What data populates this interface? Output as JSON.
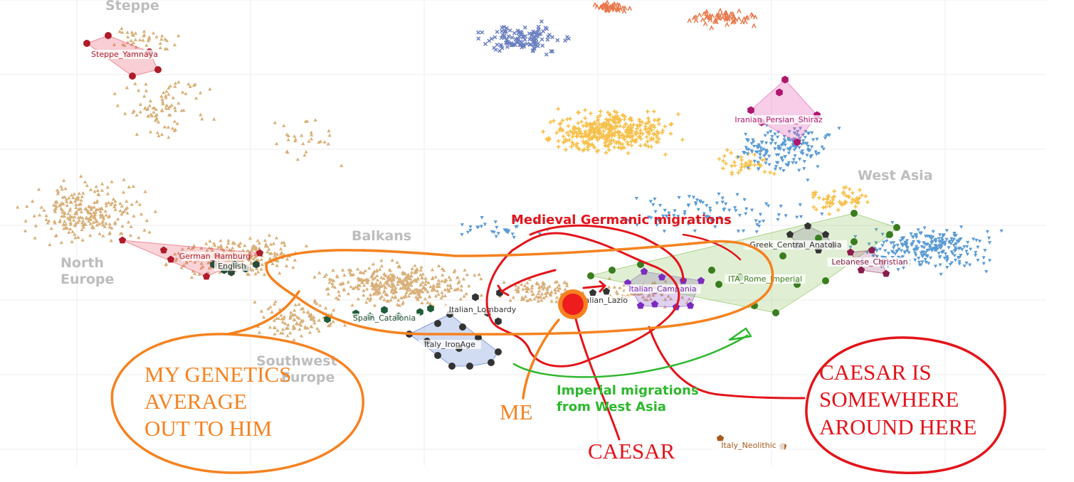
{
  "chart_data": {
    "type": "scatter",
    "title": "",
    "xlabel": "",
    "ylabel": "",
    "grid": true,
    "colors": {
      "europe": "#d9b07a",
      "westasia_a": "#f7c04a",
      "westasia_b": "#5b9bd5",
      "east_a": "#6a7fc1",
      "east_b": "#e8784a",
      "rome": "#7cb342",
      "campania": "#9c3fd6",
      "yamnaya": "#e0223a",
      "iran": "#d81b80",
      "neolithic": "#c0793a",
      "ironage": "#3f64b5",
      "catalonia": "#2e7d57",
      "annot_red": "#e3141b",
      "annot_orange": "#f58220",
      "annot_green": "#2eb82e"
    },
    "regions": [
      {
        "label": "Steppe"
      },
      {
        "label": "North"
      },
      {
        "label": "Europe"
      },
      {
        "label": "Balkans"
      },
      {
        "label": "Southwest"
      },
      {
        "label": "Europe"
      },
      {
        "label": "West Asia"
      }
    ],
    "groups": [
      {
        "label": "Steppe_Yamnaya",
        "color": "#b01a2a",
        "marker": "circle",
        "points": [
          [
            122,
            61
          ],
          [
            152,
            50
          ],
          [
            210,
            73
          ],
          [
            222,
            98
          ],
          [
            186,
            107
          ]
        ]
      },
      {
        "label": "German_Hamburg",
        "color": "#b01a2a",
        "marker": "pentagon",
        "points": [
          [
            172,
            338
          ],
          [
            230,
            352
          ],
          [
            290,
            389
          ],
          [
            365,
            356
          ],
          [
            240,
            365
          ],
          [
            305,
            360
          ]
        ]
      },
      {
        "label": "English",
        "color": "#2b4a3a",
        "marker": "hexagon",
        "points": [
          [
            300,
            372
          ],
          [
            315,
            380
          ],
          [
            330,
            372
          ],
          [
            345,
            378
          ],
          [
            360,
            372
          ],
          [
            325,
            383
          ]
        ]
      },
      {
        "label": "Spain_Catalonia",
        "color": "#1f5c3a",
        "marker": "hexagon",
        "points": [
          [
            460,
            449
          ],
          [
            500,
            441
          ],
          [
            540,
            436
          ],
          [
            560,
            445
          ],
          [
            590,
            439
          ],
          [
            605,
            434
          ],
          [
            520,
            445
          ]
        ]
      },
      {
        "label": "Italy_IronAge",
        "color": "#333333",
        "marker": "circle",
        "points": [
          [
            575,
            470
          ],
          [
            600,
            480
          ],
          [
            615,
            455
          ],
          [
            632,
            442
          ],
          [
            650,
            460
          ],
          [
            672,
            475
          ],
          [
            700,
            495
          ],
          [
            690,
            510
          ],
          [
            660,
            515
          ],
          [
            635,
            515
          ],
          [
            615,
            500
          ],
          [
            645,
            490
          ]
        ]
      },
      {
        "label": "Italian_Lombardy",
        "color": "#333333",
        "marker": "hexagon",
        "points": [
          [
            668,
            418
          ],
          [
            702,
            412
          ],
          [
            700,
            452
          ],
          [
            685,
            440
          ]
        ]
      },
      {
        "label": "Italian_Lazio",
        "color": "#333333",
        "marker": "pentagon",
        "points": [
          [
            833,
            412
          ],
          [
            852,
            410
          ],
          [
            815,
            430
          ]
        ]
      },
      {
        "label": "Italian_Campania",
        "color": "#7b2cbf",
        "marker": "pentagon",
        "points": [
          [
            882,
            398
          ],
          [
            905,
            382
          ],
          [
            930,
            390
          ],
          [
            960,
            395
          ],
          [
            985,
            395
          ],
          [
            970,
            430
          ],
          [
            950,
            432
          ],
          [
            920,
            428
          ],
          [
            900,
            430
          ]
        ]
      },
      {
        "label": "ITA_Rome_Imperial",
        "color": "#3a7d1f",
        "marker": "circle",
        "points": [
          [
            830,
            388
          ],
          [
            860,
            380
          ],
          [
            900,
            372
          ],
          [
            1000,
            380
          ],
          [
            1060,
            430
          ],
          [
            1090,
            440
          ],
          [
            1120,
            400
          ],
          [
            1160,
            395
          ],
          [
            1200,
            340
          ],
          [
            1250,
            330
          ],
          [
            1260,
            320
          ],
          [
            1200,
            300
          ],
          [
            1150,
            335
          ],
          [
            1100,
            360
          ],
          [
            1040,
            390
          ],
          [
            1010,
            400
          ]
        ]
      },
      {
        "label": "Greek_Central_Anatolia",
        "color": "#333333",
        "marker": "pentagon",
        "points": [
          [
            1110,
            330
          ],
          [
            1135,
            318
          ],
          [
            1160,
            330
          ],
          [
            1170,
            345
          ],
          [
            1150,
            352
          ],
          [
            1120,
            345
          ]
        ]
      },
      {
        "label": "Lebanese_Christian",
        "color": "#8a1c4c",
        "marker": "pentagon",
        "points": [
          [
            1195,
            355
          ],
          [
            1225,
            352
          ],
          [
            1240,
            370
          ],
          [
            1245,
            385
          ],
          [
            1210,
            380
          ]
        ]
      },
      {
        "label": "Iranian_Persian_Shiraz",
        "color": "#b01670",
        "marker": "hexagon",
        "points": [
          [
            1103,
            112
          ],
          [
            1148,
            162
          ],
          [
            1120,
            200
          ],
          [
            1070,
            172
          ],
          [
            1055,
            155
          ],
          [
            1095,
            130
          ]
        ]
      },
      {
        "label": "Italy_Neolithic",
        "color": "#a85a1f",
        "marker": "pentagon",
        "points": [
          [
            1012,
            617
          ],
          [
            1100,
            628
          ]
        ]
      }
    ],
    "annotations": [
      {
        "label": "Medieval Germanic migrations",
        "color": "#e3141b"
      },
      {
        "label": "Imperial migrations",
        "color": "#2eb82e"
      },
      {
        "label": "from West Asia",
        "color": "#2eb82e"
      },
      {
        "label": "MY GENETICS",
        "color": "#f58220"
      },
      {
        "label": "AVERAGE",
        "color": "#f58220"
      },
      {
        "label": "OUT TO HIM",
        "color": "#f58220"
      },
      {
        "label": "ME",
        "color": "#f58220"
      },
      {
        "label": "CAESAR",
        "color": "#e3141b"
      },
      {
        "label": "CAESAR IS",
        "color": "#e3141b"
      },
      {
        "label": "SOMEWHERE",
        "color": "#e3141b"
      },
      {
        "label": "AROUND HERE",
        "color": "#e3141b"
      }
    ]
  }
}
